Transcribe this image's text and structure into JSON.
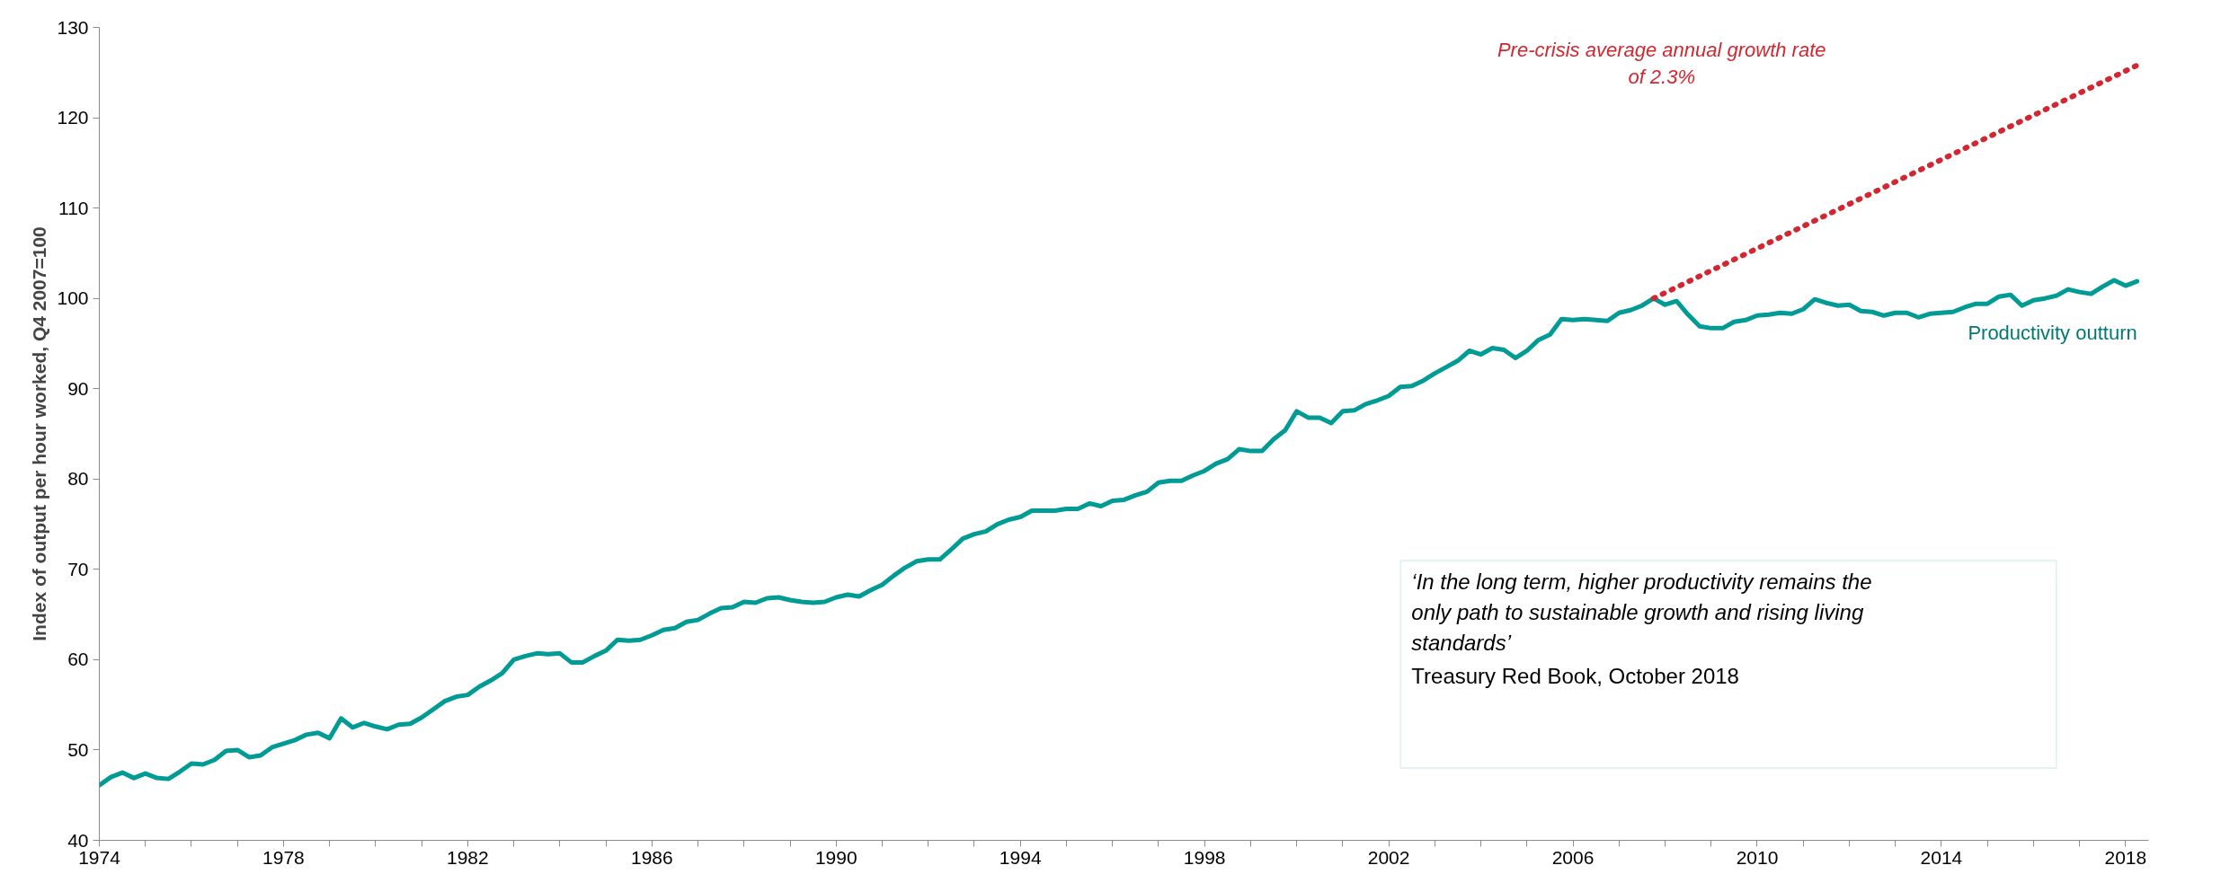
{
  "chart_data": {
    "type": "line",
    "ylabel": "Index of output per hour worked, Q4 2007=100",
    "xlim": [
      1974,
      2018.5
    ],
    "ylim": [
      40,
      130
    ],
    "xticks": [
      1974,
      {
        "value": 1975,
        "label": null
      },
      {
        "value": 1976,
        "label": null
      },
      {
        "value": 1977,
        "label": null
      },
      1978,
      {
        "value": 1979,
        "label": null
      },
      {
        "value": 1980,
        "label": null
      },
      {
        "value": 1981,
        "label": null
      },
      1982,
      {
        "value": 1983,
        "label": null
      },
      {
        "value": 1984,
        "label": null
      },
      {
        "value": 1985,
        "label": null
      },
      1986,
      {
        "value": 1987,
        "label": null
      },
      {
        "value": 1988,
        "label": null
      },
      {
        "value": 1989,
        "label": null
      },
      1990,
      {
        "value": 1991,
        "label": null
      },
      {
        "value": 1992,
        "label": null
      },
      {
        "value": 1993,
        "label": null
      },
      1994,
      {
        "value": 1995,
        "label": null
      },
      {
        "value": 1996,
        "label": null
      },
      {
        "value": 1997,
        "label": null
      },
      1998,
      {
        "value": 1999,
        "label": null
      },
      {
        "value": 2000,
        "label": null
      },
      {
        "value": 2001,
        "label": null
      },
      2002,
      {
        "value": 2003,
        "label": null
      },
      {
        "value": 2004,
        "label": null
      },
      {
        "value": 2005,
        "label": null
      },
      2006,
      {
        "value": 2007,
        "label": null
      },
      {
        "value": 2008,
        "label": null
      },
      {
        "value": 2009,
        "label": null
      },
      2010,
      {
        "value": 2011,
        "label": null
      },
      {
        "value": 2012,
        "label": null
      },
      {
        "value": 2013,
        "label": null
      },
      2014,
      {
        "value": 2015,
        "label": null
      },
      {
        "value": 2016,
        "label": null
      },
      {
        "value": 2017,
        "label": null
      },
      2018
    ],
    "yticks": [
      40,
      50,
      60,
      70,
      80,
      90,
      100,
      110,
      120,
      130
    ],
    "grid": false,
    "series": [
      {
        "name": "Productivity outturn",
        "color": "#009b94",
        "line_style": "solid",
        "x": [
          1974.0,
          1974.25,
          1974.5,
          1974.75,
          1975.0,
          1975.25,
          1975.5,
          1975.75,
          1976.0,
          1976.25,
          1976.5,
          1976.75,
          1977.0,
          1977.25,
          1977.5,
          1977.75,
          1978.0,
          1978.25,
          1978.5,
          1978.75,
          1979.0,
          1979.25,
          1979.5,
          1979.75,
          1980.0,
          1980.25,
          1980.5,
          1980.75,
          1981.0,
          1981.25,
          1981.5,
          1981.75,
          1982.0,
          1982.25,
          1982.5,
          1982.75,
          1983.0,
          1983.25,
          1983.5,
          1983.75,
          1984.0,
          1984.25,
          1984.5,
          1984.75,
          1985.0,
          1985.25,
          1985.5,
          1985.75,
          1986.0,
          1986.25,
          1986.5,
          1986.75,
          1987.0,
          1987.25,
          1987.5,
          1987.75,
          1988.0,
          1988.25,
          1988.5,
          1988.75,
          1989.0,
          1989.25,
          1989.5,
          1989.75,
          1990.0,
          1990.25,
          1990.5,
          1990.75,
          1991.0,
          1991.25,
          1991.5,
          1991.75,
          1992.0,
          1992.25,
          1992.5,
          1992.75,
          1993.0,
          1993.25,
          1993.5,
          1993.75,
          1994.0,
          1994.25,
          1994.5,
          1994.75,
          1995.0,
          1995.25,
          1995.5,
          1995.75,
          1996.0,
          1996.25,
          1996.5,
          1996.75,
          1997.0,
          1997.25,
          1997.5,
          1997.75,
          1998.0,
          1998.25,
          1998.5,
          1998.75,
          1999.0,
          1999.25,
          1999.5,
          1999.75,
          2000.0,
          2000.25,
          2000.5,
          2000.75,
          2001.0,
          2001.25,
          2001.5,
          2001.75,
          2002.0,
          2002.25,
          2002.5,
          2002.75,
          2003.0,
          2003.25,
          2003.5,
          2003.75,
          2004.0,
          2004.25,
          2004.5,
          2004.75,
          2005.0,
          2005.25,
          2005.5,
          2005.75,
          2006.0,
          2006.25,
          2006.5,
          2006.75,
          2007.0,
          2007.25,
          2007.5,
          2007.75,
          2008.0,
          2008.25,
          2008.5,
          2008.75,
          2009.0,
          2009.25,
          2009.5,
          2009.75,
          2010.0,
          2010.25,
          2010.5,
          2010.75,
          2011.0,
          2011.25,
          2011.5,
          2011.75,
          2012.0,
          2012.25,
          2012.5,
          2012.75,
          2013.0,
          2013.25,
          2013.5,
          2013.75,
          2014.0,
          2014.25,
          2014.5,
          2014.75,
          2015.0,
          2015.25,
          2015.5,
          2015.75,
          2016.0,
          2016.25,
          2016.5,
          2016.75,
          2017.0,
          2017.25,
          2017.5,
          2017.75,
          2018.0,
          2018.25
        ],
        "values": [
          46.1,
          47.0,
          47.5,
          46.9,
          47.4,
          46.9,
          46.8,
          47.6,
          48.5,
          48.4,
          48.9,
          49.9,
          50.0,
          49.2,
          49.4,
          50.3,
          50.7,
          51.1,
          51.7,
          51.9,
          51.3,
          53.5,
          52.5,
          53.0,
          52.6,
          52.3,
          52.8,
          52.9,
          53.6,
          54.5,
          55.4,
          55.9,
          56.1,
          57.0,
          57.7,
          58.5,
          60.0,
          60.4,
          60.7,
          60.6,
          60.7,
          59.7,
          59.7,
          60.4,
          61.0,
          62.2,
          62.1,
          62.2,
          62.7,
          63.3,
          63.5,
          64.2,
          64.4,
          65.1,
          65.7,
          65.8,
          66.4,
          66.3,
          66.8,
          66.9,
          66.6,
          66.4,
          66.3,
          66.4,
          66.9,
          67.2,
          67.0,
          67.7,
          68.3,
          69.3,
          70.2,
          70.9,
          71.1,
          71.1,
          72.2,
          73.4,
          73.9,
          74.2,
          75.0,
          75.5,
          75.8,
          76.5,
          76.5,
          76.5,
          76.7,
          76.7,
          77.3,
          77.0,
          77.6,
          77.7,
          78.2,
          78.6,
          79.6,
          79.8,
          79.8,
          80.4,
          80.9,
          81.7,
          82.2,
          83.3,
          83.1,
          83.1,
          84.4,
          85.4,
          87.5,
          86.8,
          86.8,
          86.2,
          87.5,
          87.6,
          88.3,
          88.7,
          89.2,
          90.2,
          90.3,
          90.9,
          91.7,
          92.4,
          93.1,
          94.2,
          93.8,
          94.5,
          94.3,
          93.4,
          94.2,
          95.4,
          96.0,
          97.7,
          97.6,
          97.7,
          97.6,
          97.5,
          98.4,
          98.7,
          99.2,
          100.0,
          99.3,
          99.7,
          98.2,
          96.9,
          96.7,
          96.7,
          97.4,
          97.6,
          98.1,
          98.2,
          98.4,
          98.3,
          98.8,
          99.9,
          99.5,
          99.2,
          99.3,
          98.6,
          98.5,
          98.1,
          98.4,
          98.4,
          97.9,
          98.3,
          98.4,
          98.5,
          99.0,
          99.4,
          99.4,
          100.2,
          100.4,
          99.2,
          99.8,
          100.0,
          100.3,
          101.0,
          100.7,
          100.5,
          101.3,
          102.0,
          101.4,
          101.9
        ]
      },
      {
        "name": "Pre-crisis average annual growth rate of 2.3%",
        "color": "#d22630",
        "line_style": "dotted",
        "x": [
          2007.75,
          2018.25
        ],
        "values": [
          100.0,
          125.8
        ]
      }
    ],
    "annotations": [
      "‘In the long term, higher productivity remains the only path to sustainable growth and rising living standards’",
      "Treasury Red Book, October 2018"
    ]
  }
}
